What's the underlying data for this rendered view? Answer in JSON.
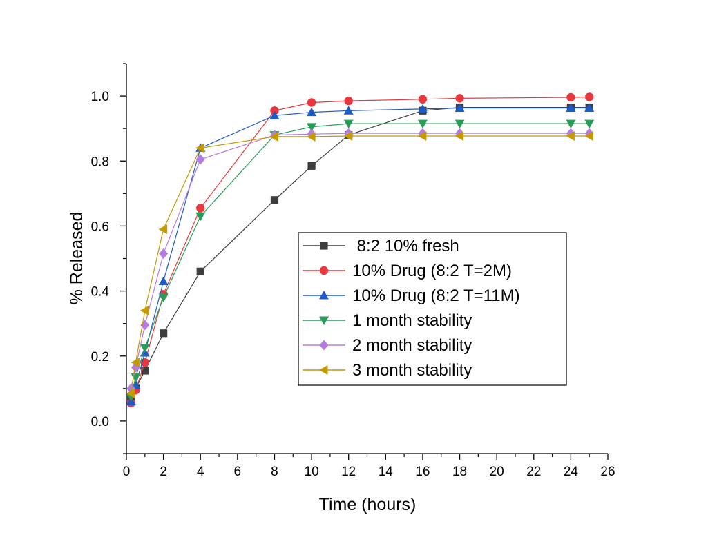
{
  "chart_data": {
    "type": "line",
    "xlabel": "Time (hours)",
    "ylabel": "% Released",
    "xlim": [
      0,
      26
    ],
    "ylim": [
      -0.1,
      1.1
    ],
    "xticks": [
      0,
      2,
      4,
      6,
      8,
      10,
      12,
      14,
      16,
      18,
      20,
      22,
      24,
      26
    ],
    "yticks": [
      0.0,
      0.2,
      0.4,
      0.6,
      0.8,
      1.0
    ],
    "grid": false,
    "legend_position": "center-right",
    "series": [
      {
        "name": " 8:2 10% fresh",
        "color": "#3d3d3d",
        "marker": "square",
        "x": [
          0.25,
          0.5,
          1,
          2,
          4,
          8,
          10,
          12,
          16,
          18,
          24,
          25
        ],
        "y": [
          0.07,
          0.1,
          0.155,
          0.27,
          0.46,
          0.68,
          0.785,
          0.88,
          0.955,
          0.965,
          0.965,
          0.965
        ]
      },
      {
        "name": "10% Drug (8:2 T=2M)",
        "color": "#e8383d",
        "marker": "circle",
        "x": [
          0.25,
          0.5,
          1,
          2,
          4,
          8,
          10,
          12,
          16,
          18,
          24,
          25
        ],
        "y": [
          0.055,
          0.095,
          0.18,
          0.39,
          0.655,
          0.955,
          0.98,
          0.985,
          0.99,
          0.993,
          0.996,
          0.997
        ]
      },
      {
        "name": "10% Drug (8:2 T=11M)",
        "color": "#1f5bc6",
        "marker": "triangle-up",
        "x": [
          0.25,
          0.5,
          1,
          2,
          4,
          8,
          10,
          12,
          16,
          18,
          24,
          25
        ],
        "y": [
          0.06,
          0.11,
          0.21,
          0.43,
          0.84,
          0.94,
          0.95,
          0.955,
          0.96,
          0.963,
          0.963,
          0.963
        ]
      },
      {
        "name": "1 month stability",
        "color": "#2a9c5a",
        "marker": "triangle-down",
        "x": [
          0.25,
          0.5,
          1,
          2,
          4,
          8,
          10,
          12,
          16,
          18,
          24,
          25
        ],
        "y": [
          0.075,
          0.135,
          0.225,
          0.38,
          0.63,
          0.88,
          0.905,
          0.915,
          0.915,
          0.915,
          0.915,
          0.915
        ]
      },
      {
        "name": "2 month stability",
        "color": "#b67be0",
        "marker": "diamond",
        "x": [
          0.25,
          0.5,
          1,
          2,
          4,
          8,
          10,
          12,
          16,
          18,
          24,
          25
        ],
        "y": [
          0.1,
          0.165,
          0.295,
          0.515,
          0.805,
          0.88,
          0.883,
          0.885,
          0.885,
          0.885,
          0.885,
          0.885
        ]
      },
      {
        "name": "3 month stability",
        "color": "#c49a00",
        "marker": "triangle-left",
        "x": [
          0.25,
          0.5,
          1,
          2,
          4,
          8,
          10,
          12,
          16,
          18,
          24,
          25
        ],
        "y": [
          0.085,
          0.18,
          0.34,
          0.59,
          0.84,
          0.875,
          0.875,
          0.877,
          0.877,
          0.877,
          0.877,
          0.877
        ]
      }
    ]
  }
}
